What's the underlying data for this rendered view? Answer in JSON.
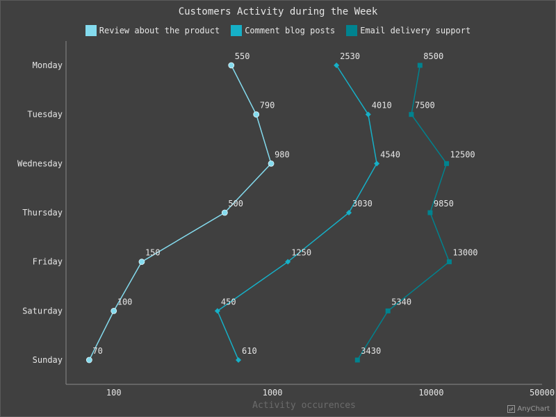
{
  "chart_data": {
    "type": "line",
    "title": "Customers Activity during the Week",
    "xlabel": "Activity occurences",
    "ylabel": "",
    "x_scale": "log",
    "xlim": [
      50,
      50000
    ],
    "x_ticks": [
      100,
      1000,
      10000,
      50000
    ],
    "x_tick_labels": [
      "100",
      "1000",
      "10000",
      "50000"
    ],
    "categories": [
      "Monday",
      "Tuesday",
      "Wednesday",
      "Thursday",
      "Friday",
      "Saturday",
      "Sunday"
    ],
    "legend_position": "top",
    "grid": false,
    "series": [
      {
        "name": "Review about the product",
        "color": "#84dbee",
        "marker": "circle",
        "values": [
          550,
          790,
          980,
          500,
          150,
          100,
          70
        ]
      },
      {
        "name": "Comment blog posts",
        "color": "#16b0c7",
        "marker": "diamond",
        "values": [
          2530,
          4010,
          4540,
          3030,
          1250,
          450,
          610
        ]
      },
      {
        "name": "Email delivery support",
        "color": "#00838f",
        "marker": "square",
        "values": [
          8500,
          7500,
          12500,
          9850,
          13000,
          5340,
          3430
        ]
      }
    ]
  },
  "credit": "AnyChart"
}
